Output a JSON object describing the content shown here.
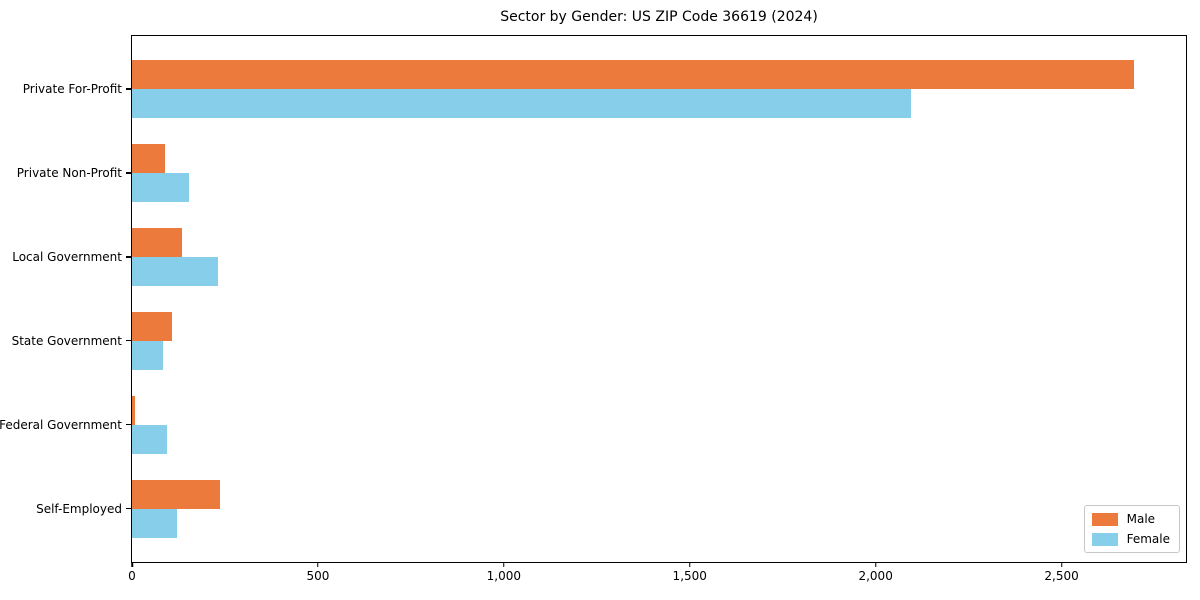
{
  "title": "Sector by Gender: US ZIP Code 36619 (2024)",
  "chart_data": {
    "type": "bar",
    "orientation": "horizontal",
    "title": "Sector by Gender: US ZIP Code 36619 (2024)",
    "categories": [
      "Private For-Profit",
      "Private Non-Profit",
      "Local Government",
      "State Government",
      "Federal Government",
      "Self-Employed"
    ],
    "series": [
      {
        "name": "Male",
        "color": "#ec7a3c",
        "values": [
          2695,
          88,
          135,
          108,
          9,
          238
        ]
      },
      {
        "name": "Female",
        "color": "#87ceeb",
        "values": [
          2095,
          153,
          230,
          83,
          95,
          122
        ]
      }
    ],
    "xlabel": "",
    "ylabel": "",
    "xlim": [
      0,
      2840
    ],
    "x_ticks": [
      0,
      500,
      1000,
      1500,
      2000,
      2500
    ],
    "x_tick_labels": [
      "0",
      "500",
      "1,000",
      "1,500",
      "2,000",
      "2,500"
    ],
    "grid": false,
    "legend_position": "lower right",
    "background_color": "#ffffff",
    "text_color": "#000000"
  }
}
